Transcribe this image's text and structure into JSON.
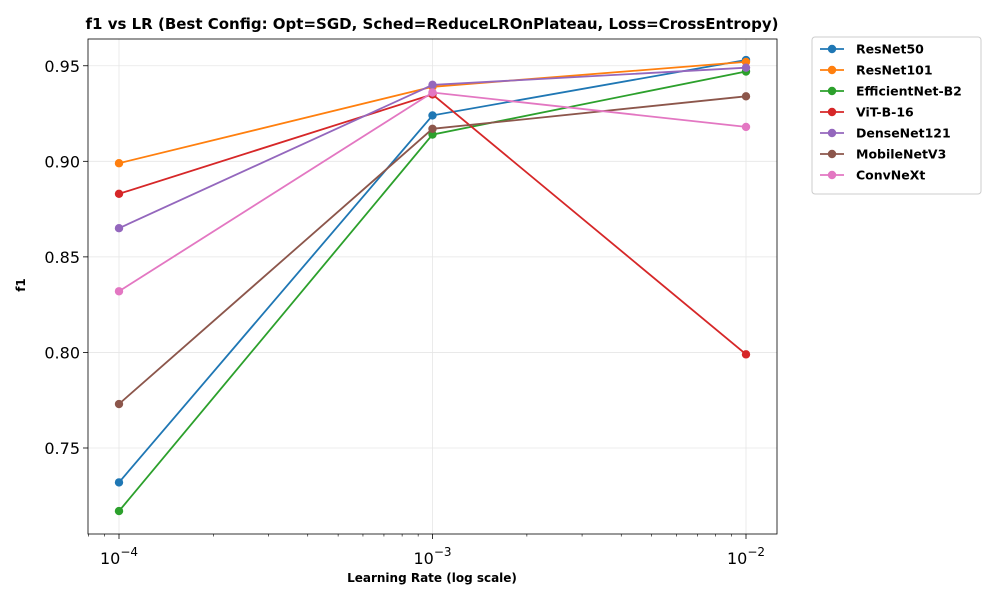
{
  "chart_data": {
    "type": "line",
    "title": "f1 vs LR (Best Config: Opt=SGD, Sched=ReduceLROnPlateau, Loss=CrossEntropy)",
    "xlabel": "Learning Rate (log scale)",
    "ylabel": "f1",
    "x_scale": "log",
    "x": [
      0.0001,
      0.001,
      0.01
    ],
    "x_tick_labels": [
      {
        "base": "10",
        "exp": "−4"
      },
      {
        "base": "10",
        "exp": "−3"
      },
      {
        "base": "10",
        "exp": "−2"
      }
    ],
    "y_ticks": [
      "0.75",
      "0.80",
      "0.85",
      "0.90",
      "0.95"
    ],
    "ylim": [
      0.705,
      0.964
    ],
    "grid": true,
    "legend_position": "outside-top-right",
    "series": [
      {
        "name": "ResNet50",
        "color": "#1f77b4",
        "values": [
          0.732,
          0.924,
          0.953
        ]
      },
      {
        "name": "ResNet101",
        "color": "#ff7f0e",
        "values": [
          0.899,
          0.939,
          0.952
        ]
      },
      {
        "name": "EfficientNet-B2",
        "color": "#2ca02c",
        "values": [
          0.717,
          0.914,
          0.947
        ]
      },
      {
        "name": "ViT-B-16",
        "color": "#d62728",
        "values": [
          0.883,
          0.935,
          0.799
        ]
      },
      {
        "name": "DenseNet121",
        "color": "#9467bd",
        "values": [
          0.865,
          0.94,
          0.949
        ]
      },
      {
        "name": "MobileNetV3",
        "color": "#8c564b",
        "values": [
          0.773,
          0.917,
          0.934
        ]
      },
      {
        "name": "ConvNeXt",
        "color": "#e377c2",
        "values": [
          0.832,
          0.936,
          0.918
        ]
      }
    ]
  }
}
